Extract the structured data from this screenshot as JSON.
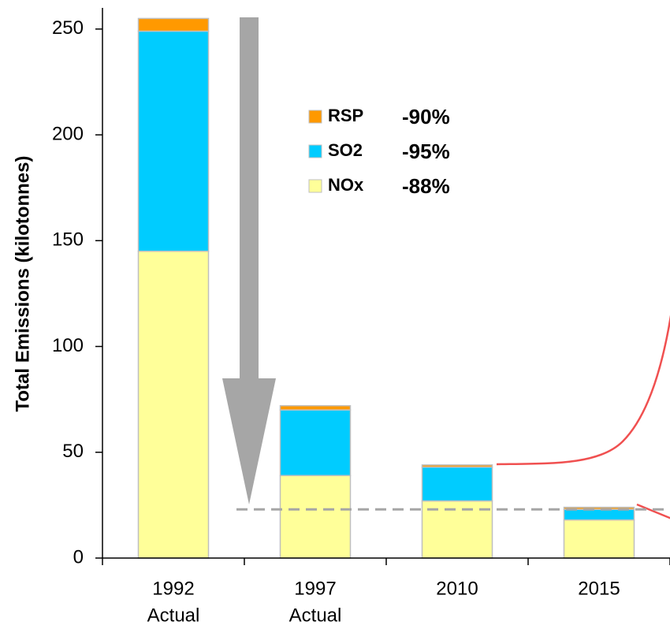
{
  "chart_data": {
    "type": "stacked_bar",
    "y_label": "Total Emissions (kilotonnes)",
    "categories": [
      [
        "1992",
        "Actual"
      ],
      [
        "1997",
        "Actual"
      ],
      [
        "2010"
      ],
      [
        "2015"
      ]
    ],
    "series": [
      {
        "name": "NOx",
        "color": "#ffff99",
        "change": "-88%",
        "values": [
          145,
          39,
          27,
          18
        ]
      },
      {
        "name": "SO2",
        "color": "#00ccff",
        "change": "-95%",
        "values": [
          104,
          31,
          16,
          5
        ]
      },
      {
        "name": "RSP",
        "color": "#ff9900",
        "change": "-90%",
        "values": [
          6,
          2,
          1,
          1
        ]
      }
    ],
    "reference_line": 23,
    "ylim": [
      0,
      260
    ],
    "yticks": [
      0,
      50,
      100,
      150,
      200,
      250
    ]
  }
}
